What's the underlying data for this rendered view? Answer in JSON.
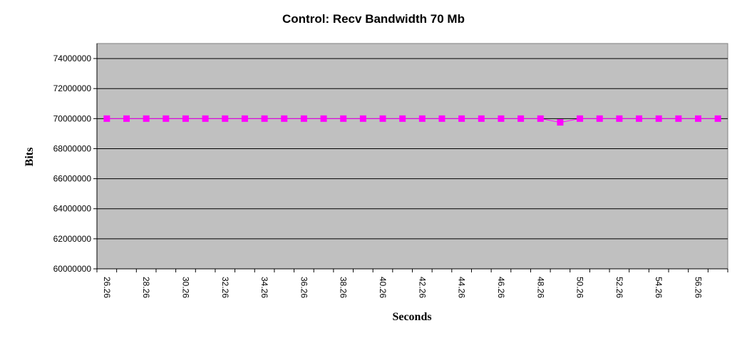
{
  "chart_data": {
    "type": "line",
    "title": "Control: Recv Bandwidth 70 Mb",
    "x_label": "Seconds",
    "y_label": "Bits",
    "categories": [
      "26.26",
      null,
      "28.26",
      null,
      "30.26",
      null,
      "32.26",
      null,
      "34.26",
      null,
      "36.26",
      null,
      "38.26",
      null,
      "40.26",
      null,
      "42.26",
      null,
      "44.26",
      null,
      "46.26",
      null,
      "48.26",
      null,
      "50.26",
      null,
      "52.26",
      null,
      "54.26",
      null,
      "56.26",
      null
    ],
    "series": [
      {
        "color": "#ff00ff",
        "values": [
          70000000,
          70000000,
          70000000,
          70000000,
          70000000,
          70000000,
          70000000,
          70000000,
          70000000,
          70000000,
          70000000,
          70000000,
          70000000,
          70000000,
          70000000,
          70000000,
          70000000,
          70000000,
          70000000,
          70000000,
          70000000,
          70000000,
          70000000,
          69750000,
          70000000,
          70000000,
          70000000,
          70000000,
          70000000,
          70000000,
          70000000,
          70000000
        ]
      }
    ],
    "ylim": [
      60000000,
      75000000
    ],
    "yticks": [
      60000000,
      62000000,
      64000000,
      66000000,
      68000000,
      70000000,
      72000000,
      74000000
    ],
    "grid": true,
    "background": "#c0c0c0"
  }
}
